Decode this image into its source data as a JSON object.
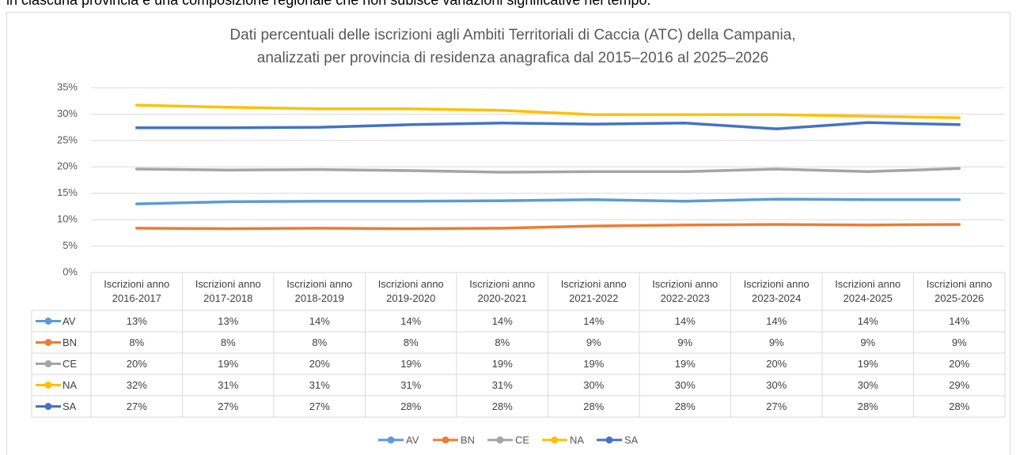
{
  "note": "in ciascuna provincia è una composizione regionale che non subisce variazioni significative nel tempo.",
  "chart_data": {
    "type": "line",
    "title": [
      "Dati percentuali delle iscrizioni agli Ambiti Territoriali di Caccia (ATC)  della Campania,",
      "analizzati per provincia di residenza anagrafica dal 2015–2016 al 2025–2026"
    ],
    "categories": [
      "Iscrizioni anno 2016-2017",
      "Iscrizioni anno 2017-2018",
      "Iscrizioni anno 2018-2019",
      "Iscrizioni anno 2019-2020",
      "Iscrizioni anno 2020-2021",
      "Iscrizioni anno 2021-2022",
      "Iscrizioni anno 2022-2023",
      "Iscrizioni anno 2023-2024",
      "Iscrizioni anno 2024-2025",
      "Iscrizioni anno 2025-2026"
    ],
    "series": [
      {
        "name": "AV",
        "color": "#5b9bd5",
        "values": [
          13.0,
          13.4,
          13.5,
          13.5,
          13.6,
          13.8,
          13.5,
          13.9,
          13.8,
          13.8
        ],
        "value_labels": [
          "13%",
          "13%",
          "14%",
          "14%",
          "14%",
          "14%",
          "14%",
          "14%",
          "14%",
          "14%"
        ]
      },
      {
        "name": "BN",
        "color": "#ed7d31",
        "values": [
          8.4,
          8.3,
          8.4,
          8.3,
          8.4,
          8.8,
          9.0,
          9.1,
          9.0,
          9.1
        ],
        "value_labels": [
          "8%",
          "8%",
          "8%",
          "8%",
          "8%",
          "9%",
          "9%",
          "9%",
          "9%",
          "9%"
        ]
      },
      {
        "name": "CE",
        "color": "#a5a5a5",
        "values": [
          19.6,
          19.4,
          19.5,
          19.3,
          19.0,
          19.1,
          19.1,
          19.6,
          19.1,
          19.7
        ],
        "value_labels": [
          "20%",
          "19%",
          "20%",
          "19%",
          "19%",
          "19%",
          "19%",
          "20%",
          "19%",
          "20%"
        ]
      },
      {
        "name": "NA",
        "color": "#ffc000",
        "values": [
          31.7,
          31.3,
          31.0,
          31.0,
          30.7,
          29.9,
          29.9,
          29.9,
          29.6,
          29.3
        ],
        "value_labels": [
          "32%",
          "31%",
          "31%",
          "31%",
          "31%",
          "30%",
          "30%",
          "30%",
          "30%",
          "29%"
        ]
      },
      {
        "name": "SA",
        "color": "#4472c4",
        "values": [
          27.4,
          27.4,
          27.5,
          28.0,
          28.3,
          28.1,
          28.3,
          27.2,
          28.4,
          28.0
        ],
        "value_labels": [
          "27%",
          "27%",
          "27%",
          "28%",
          "28%",
          "28%",
          "28%",
          "27%",
          "28%",
          "28%"
        ]
      }
    ],
    "ylim": [
      0,
      35
    ],
    "yticks": [
      {
        "value": 0,
        "label": "0%"
      },
      {
        "value": 5,
        "label": "5%"
      },
      {
        "value": 10,
        "label": "10%"
      },
      {
        "value": 15,
        "label": "15%"
      },
      {
        "value": 20,
        "label": "20%"
      },
      {
        "value": 25,
        "label": "25%"
      },
      {
        "value": 30,
        "label": "30%"
      },
      {
        "value": 35,
        "label": "35%"
      }
    ],
    "grid": true,
    "legend": "bottom"
  }
}
